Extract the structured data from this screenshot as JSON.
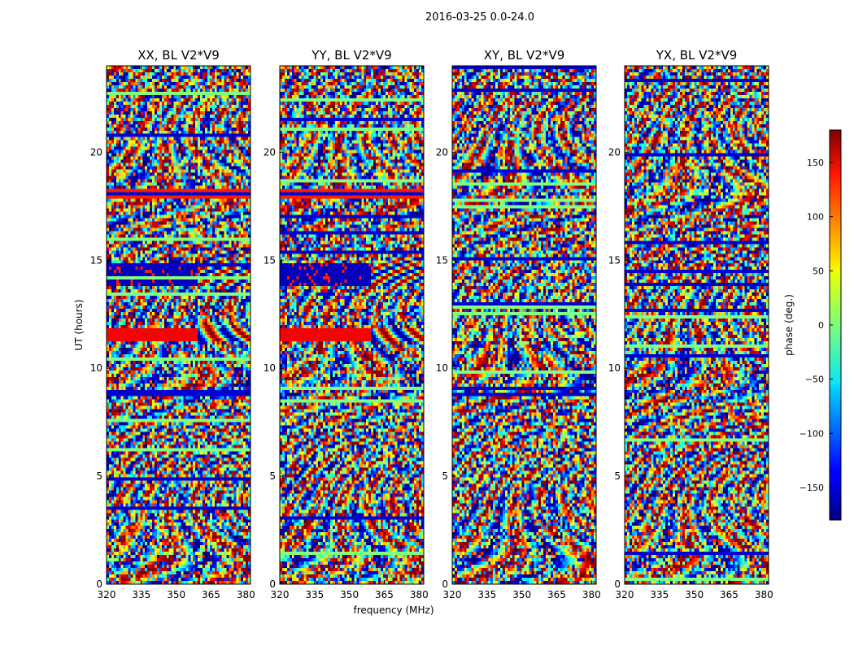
{
  "figure": {
    "suptitle": "2016-03-25 0.0-24.0"
  },
  "chart_data": [
    {
      "type": "heatmap",
      "title": "XX, BL V2*V9",
      "xlabel": "",
      "ylabel": "UT (hours)",
      "xlim": [
        320,
        382
      ],
      "ylim": [
        0,
        24
      ],
      "xticks": [
        320,
        335,
        350,
        365,
        380
      ],
      "yticks": [
        0,
        5,
        10,
        15,
        20
      ],
      "value_range": [
        -180,
        180
      ],
      "description_free": true
    },
    {
      "type": "heatmap",
      "title": "YY, BL V2*V9",
      "xlabel": "frequency (MHz)",
      "ylabel": "",
      "xlim": [
        320,
        382
      ],
      "ylim": [
        0,
        24
      ],
      "xticks": [
        320,
        335,
        350,
        365,
        380
      ],
      "yticks": [
        0,
        5,
        10,
        15,
        20
      ],
      "value_range": [
        -180,
        180
      ]
    },
    {
      "type": "heatmap",
      "title": "XY, BL V2*V9",
      "xlabel": "",
      "ylabel": "",
      "xlim": [
        320,
        382
      ],
      "ylim": [
        0,
        24
      ],
      "xticks": [
        320,
        335,
        350,
        365,
        380
      ],
      "yticks": [
        0,
        5,
        10,
        15,
        20
      ],
      "value_range": [
        -180,
        180
      ]
    },
    {
      "type": "heatmap",
      "title": "YX, BL V2*V9",
      "xlabel": "",
      "ylabel": "",
      "xlim": [
        320,
        382
      ],
      "ylim": [
        0,
        24
      ],
      "xticks": [
        320,
        335,
        350,
        365,
        380
      ],
      "yticks": [
        0,
        5,
        10,
        15,
        20
      ],
      "value_range": [
        -180,
        180
      ]
    }
  ],
  "colorbar": {
    "label": "phase (deg.)",
    "range": [
      -180,
      180
    ],
    "ticks": [
      150,
      100,
      50,
      0,
      -50,
      -100,
      -150
    ],
    "tick_labels": [
      "150",
      "100",
      "50",
      "0",
      "−50",
      "−100",
      "−150"
    ],
    "colormap": "jet"
  }
}
